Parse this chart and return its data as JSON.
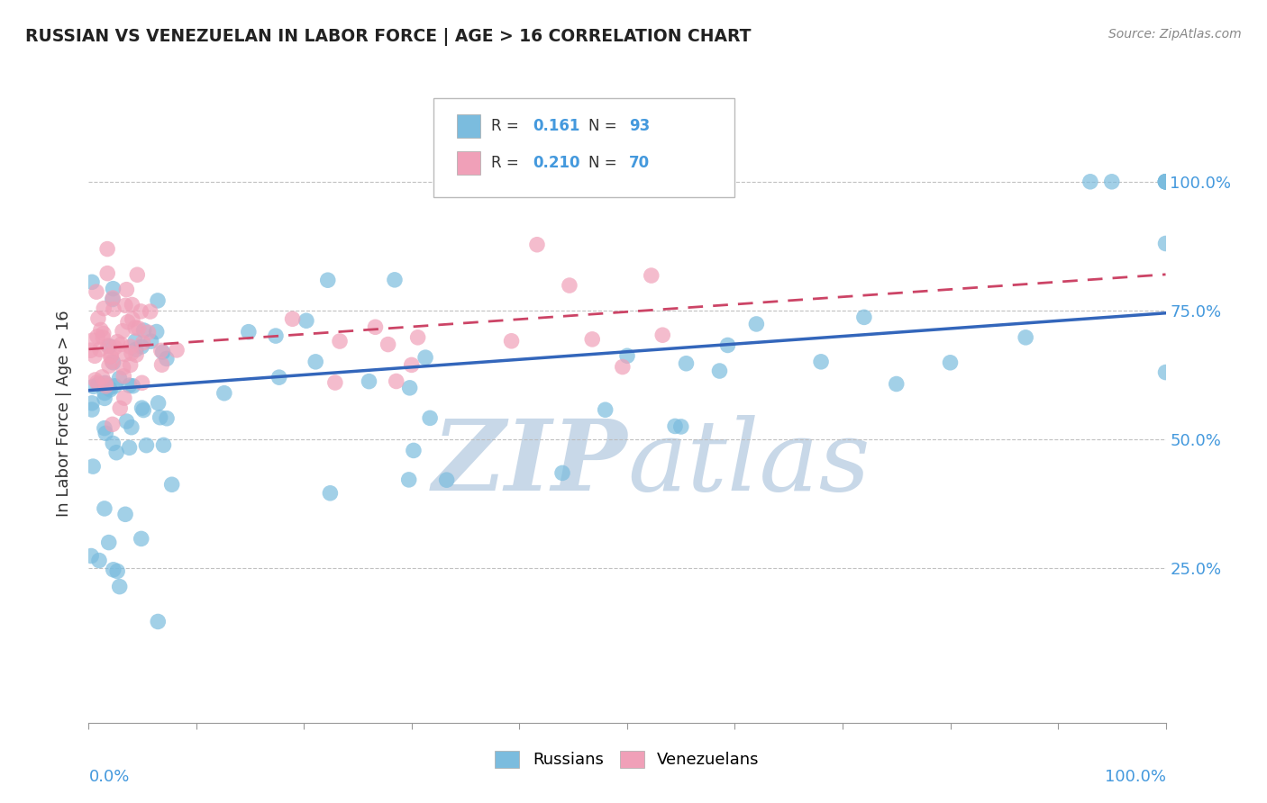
{
  "title": "RUSSIAN VS VENEZUELAN IN LABOR FORCE | AGE > 16 CORRELATION CHART",
  "source": "Source: ZipAtlas.com",
  "ylabel": "In Labor Force | Age > 16",
  "xlim": [
    0.0,
    1.0
  ],
  "ylim": [
    -0.05,
    1.15
  ],
  "russian_R": 0.161,
  "russian_N": 93,
  "venezuelan_R": 0.21,
  "venezuelan_N": 70,
  "russian_color": "#7bbcde",
  "russian_line_color": "#3366bb",
  "venezuelan_color": "#f0a0b8",
  "venezuelan_line_color": "#cc4466",
  "background_color": "#ffffff",
  "grid_color": "#bbbbbb",
  "watermark_color": "#c8d8e8",
  "legend_label_russian": "Russians",
  "legend_label_venezuelan": "Venezuelans",
  "tick_color": "#4499dd",
  "title_color": "#222222",
  "source_color": "#888888",
  "ytick_labels": [
    "25.0%",
    "50.0%",
    "75.0%",
    "100.0%"
  ],
  "ytick_vals": [
    0.25,
    0.5,
    0.75,
    1.0
  ],
  "xtick_labels_shown": [
    "0.0%",
    "100.0%"
  ],
  "xtick_vals_shown": [
    0.0,
    1.0
  ],
  "rus_line_y0": 0.595,
  "rus_line_y1": 0.745,
  "ven_line_y0": 0.675,
  "ven_line_y1": 0.82
}
